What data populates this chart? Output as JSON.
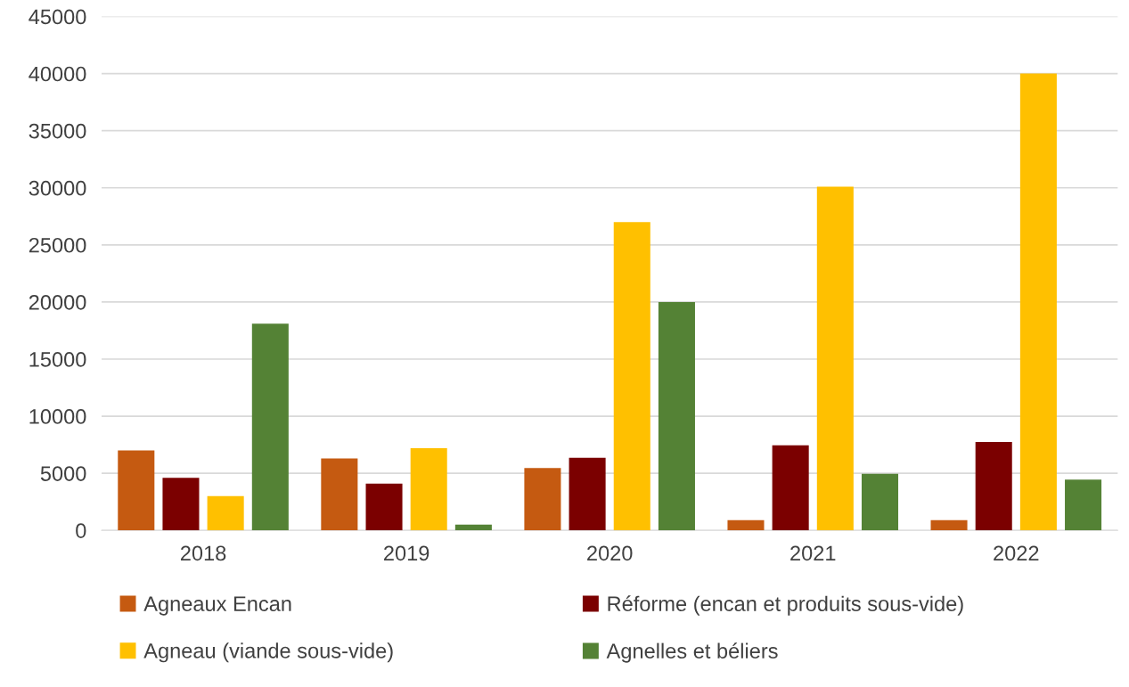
{
  "chart_data": {
    "type": "bar",
    "categories": [
      "2018",
      "2019",
      "2020",
      "2021",
      "2022"
    ],
    "series": [
      {
        "name": "Agneaux Encan",
        "color": "#c55a11",
        "values": [
          7000,
          6300,
          5450,
          900,
          900
        ]
      },
      {
        "name": "Réforme (encan et produits sous-vide)",
        "color": "#7b0000",
        "values": [
          4600,
          4100,
          6350,
          7450,
          7750
        ]
      },
      {
        "name": "Agneau (viande sous-vide)",
        "color": "#ffc000",
        "values": [
          3000,
          7200,
          27000,
          30100,
          40000
        ]
      },
      {
        "name": "Agnelles et béliers",
        "color": "#548235",
        "values": [
          18100,
          500,
          20000,
          4950,
          4450
        ]
      }
    ],
    "ylim": [
      0,
      45000
    ],
    "yticks": [
      0,
      5000,
      10000,
      15000,
      20000,
      25000,
      30000,
      35000,
      40000,
      45000
    ],
    "grid": "y",
    "legend": "bottom"
  }
}
